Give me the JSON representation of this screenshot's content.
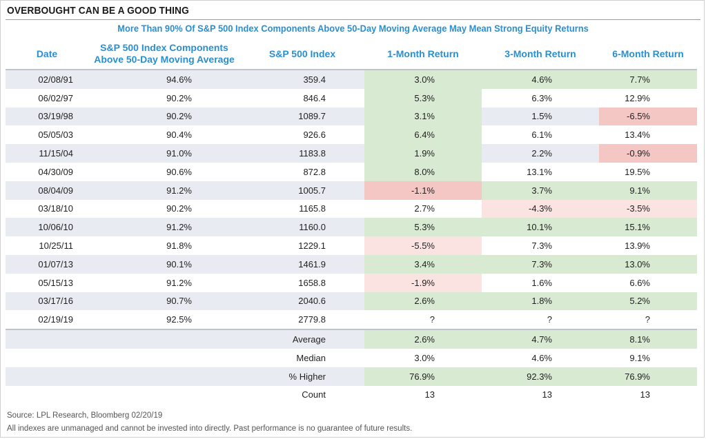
{
  "title": "OVERBOUGHT CAN BE A GOOD THING",
  "colors": {
    "positive": "#d9ead2",
    "negative": "#f4c7c5",
    "slight_negative": "#fbe3e2",
    "header_text": "#2a8fd0"
  },
  "chart_data": {
    "type": "table",
    "title": "More Than 90% Of S&P 500 Index Components Above 50-Day Moving Average May Mean Strong Equity Returns",
    "columns": [
      "Date",
      "S&P 500 Index Components Above 50-Day Moving Average",
      "S&P 500 Index",
      "1-Month Return",
      "3-Month Return",
      "6-Month Return"
    ],
    "rows": [
      {
        "date": "02/08/91",
        "components": "94.6%",
        "index": "359.4",
        "m1": "3.0%",
        "m3": "4.6%",
        "m6": "7.7%",
        "m1_c": "pos",
        "m3_c": "pos",
        "m6_c": "pos"
      },
      {
        "date": "06/02/97",
        "components": "90.2%",
        "index": "846.4",
        "m1": "5.3%",
        "m3": "6.3%",
        "m6": "12.9%",
        "m1_c": "pos",
        "m3_c": "none",
        "m6_c": "none"
      },
      {
        "date": "03/19/98",
        "components": "90.2%",
        "index": "1089.7",
        "m1": "3.1%",
        "m3": "1.5%",
        "m6": "-6.5%",
        "m1_c": "pos",
        "m3_c": "none",
        "m6_c": "neg"
      },
      {
        "date": "05/05/03",
        "components": "90.4%",
        "index": "926.6",
        "m1": "6.4%",
        "m3": "6.1%",
        "m6": "13.4%",
        "m1_c": "pos",
        "m3_c": "none",
        "m6_c": "none"
      },
      {
        "date": "11/15/04",
        "components": "91.0%",
        "index": "1183.8",
        "m1": "1.9%",
        "m3": "2.2%",
        "m6": "-0.9%",
        "m1_c": "pos",
        "m3_c": "none",
        "m6_c": "neg"
      },
      {
        "date": "04/30/09",
        "components": "90.6%",
        "index": "872.8",
        "m1": "8.0%",
        "m3": "13.1%",
        "m6": "19.5%",
        "m1_c": "pos",
        "m3_c": "none",
        "m6_c": "none"
      },
      {
        "date": "08/04/09",
        "components": "91.2%",
        "index": "1005.7",
        "m1": "-1.1%",
        "m3": "3.7%",
        "m6": "9.1%",
        "m1_c": "neg",
        "m3_c": "pos",
        "m6_c": "pos"
      },
      {
        "date": "03/18/10",
        "components": "90.2%",
        "index": "1165.8",
        "m1": "2.7%",
        "m3": "-4.3%",
        "m6": "-3.5%",
        "m1_c": "none",
        "m3_c": "lneg",
        "m6_c": "lneg"
      },
      {
        "date": "10/06/10",
        "components": "91.2%",
        "index": "1160.0",
        "m1": "5.3%",
        "m3": "10.1%",
        "m6": "15.1%",
        "m1_c": "pos",
        "m3_c": "pos",
        "m6_c": "pos"
      },
      {
        "date": "10/25/11",
        "components": "91.8%",
        "index": "1229.1",
        "m1": "-5.5%",
        "m3": "7.3%",
        "m6": "13.9%",
        "m1_c": "lneg",
        "m3_c": "none",
        "m6_c": "none"
      },
      {
        "date": "01/07/13",
        "components": "90.1%",
        "index": "1461.9",
        "m1": "3.4%",
        "m3": "7.3%",
        "m6": "13.0%",
        "m1_c": "pos",
        "m3_c": "pos",
        "m6_c": "pos"
      },
      {
        "date": "05/15/13",
        "components": "91.2%",
        "index": "1658.8",
        "m1": "-1.9%",
        "m3": "1.6%",
        "m6": "6.6%",
        "m1_c": "lneg",
        "m3_c": "none",
        "m6_c": "none"
      },
      {
        "date": "03/17/16",
        "components": "90.7%",
        "index": "2040.6",
        "m1": "2.6%",
        "m3": "1.8%",
        "m6": "5.2%",
        "m1_c": "pos",
        "m3_c": "pos",
        "m6_c": "pos"
      },
      {
        "date": "02/19/19",
        "components": "92.5%",
        "index": "2779.8",
        "m1": "?",
        "m3": "?",
        "m6": "?",
        "m1_c": "none",
        "m3_c": "none",
        "m6_c": "none"
      }
    ],
    "summary": [
      {
        "label": "Average",
        "m1": "2.6%",
        "m3": "4.7%",
        "m6": "8.1%",
        "m1_c": "pos",
        "m3_c": "pos",
        "m6_c": "pos"
      },
      {
        "label": "Median",
        "m1": "3.0%",
        "m3": "4.6%",
        "m6": "9.1%",
        "m1_c": "none",
        "m3_c": "none",
        "m6_c": "none"
      },
      {
        "label": "% Higher",
        "m1": "76.9%",
        "m3": "92.3%",
        "m6": "76.9%",
        "m1_c": "pos",
        "m3_c": "pos",
        "m6_c": "pos"
      },
      {
        "label": "Count",
        "m1": "13",
        "m3": "13",
        "m6": "13",
        "m1_c": "none",
        "m3_c": "none",
        "m6_c": "none"
      }
    ]
  },
  "source": "Source: LPL Research, Bloomberg  02/20/19",
  "disclaimer": "All indexes are unmanaged and cannot be invested into directly. Past performance is no guarantee of future results."
}
